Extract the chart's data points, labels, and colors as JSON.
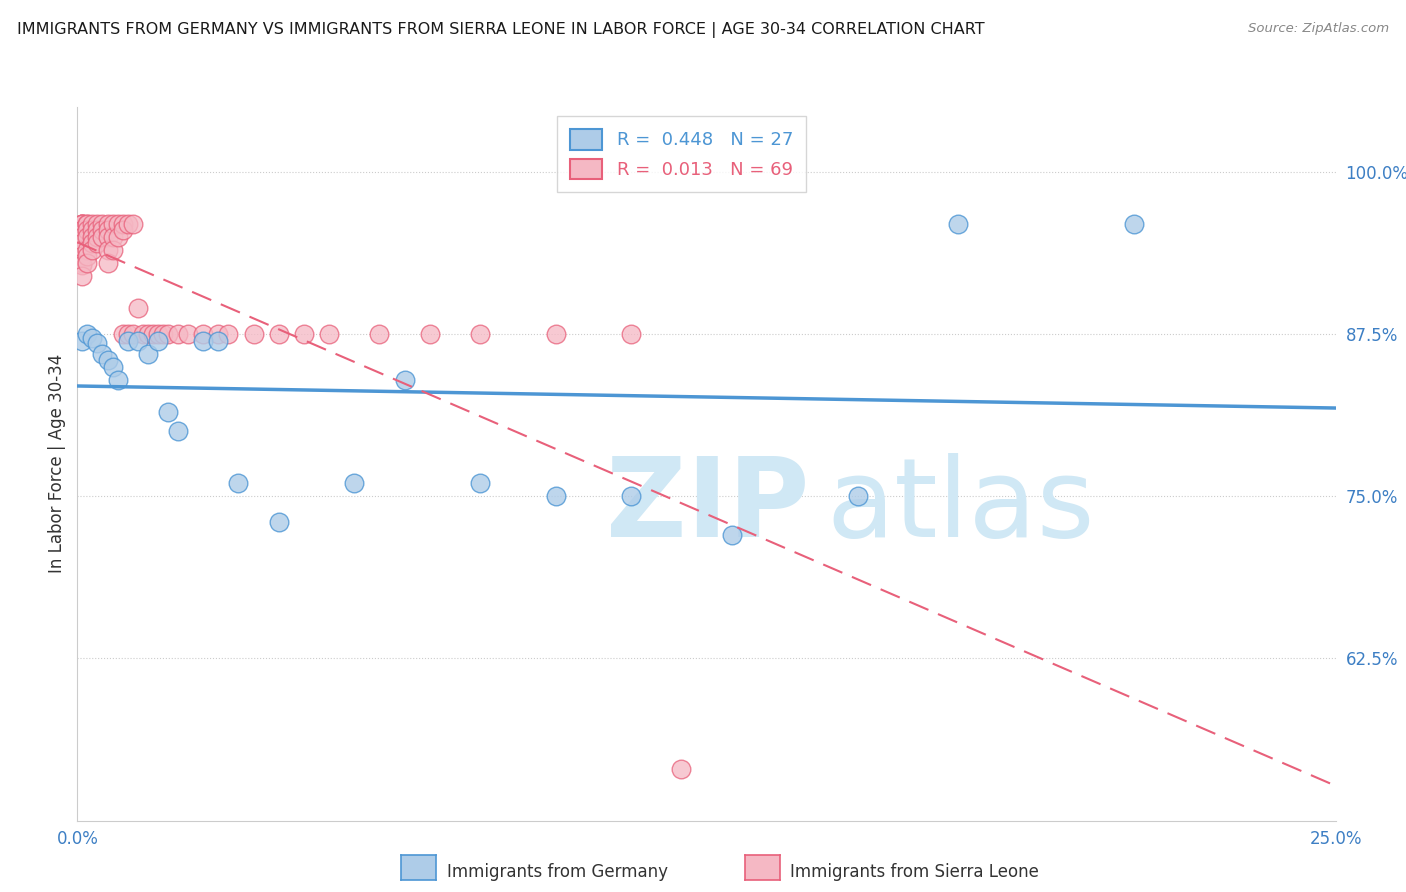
{
  "title": "IMMIGRANTS FROM GERMANY VS IMMIGRANTS FROM SIERRA LEONE IN LABOR FORCE | AGE 30-34 CORRELATION CHART",
  "source_text": "Source: ZipAtlas.com",
  "ylabel": "In Labor Force | Age 30-34",
  "xlim": [
    0.0,
    0.25
  ],
  "ylim": [
    0.5,
    1.05
  ],
  "yticks": [
    0.625,
    0.75,
    0.875,
    1.0
  ],
  "ytick_labels": [
    "62.5%",
    "75.0%",
    "87.5%",
    "100.0%"
  ],
  "xticks": [
    0.0,
    0.05,
    0.1,
    0.15,
    0.2,
    0.25
  ],
  "xtick_labels": [
    "0.0%",
    "",
    "",
    "",
    "",
    "25.0%"
  ],
  "germany_R": 0.448,
  "germany_N": 27,
  "sierraleone_R": 0.013,
  "sierraleone_N": 69,
  "germany_color": "#aecce8",
  "sierraleone_color": "#f5b8c4",
  "germany_line_color": "#4d96d4",
  "sierraleone_line_color": "#e8607a",
  "watermark_color": "#d0e8f5",
  "germany_scatter_x": [
    0.001,
    0.002,
    0.003,
    0.004,
    0.005,
    0.006,
    0.007,
    0.008,
    0.01,
    0.012,
    0.014,
    0.016,
    0.018,
    0.02,
    0.025,
    0.028,
    0.032,
    0.04,
    0.055,
    0.065,
    0.08,
    0.095,
    0.11,
    0.13,
    0.155,
    0.175,
    0.21
  ],
  "germany_scatter_y": [
    0.87,
    0.875,
    0.872,
    0.868,
    0.86,
    0.855,
    0.85,
    0.84,
    0.87,
    0.87,
    0.86,
    0.87,
    0.815,
    0.8,
    0.87,
    0.87,
    0.76,
    0.73,
    0.76,
    0.84,
    0.76,
    0.75,
    0.75,
    0.72,
    0.75,
    0.96,
    0.96
  ],
  "sierraleone_scatter_x": [
    0.001,
    0.001,
    0.001,
    0.001,
    0.001,
    0.001,
    0.001,
    0.001,
    0.001,
    0.001,
    0.001,
    0.001,
    0.002,
    0.002,
    0.002,
    0.002,
    0.002,
    0.002,
    0.002,
    0.003,
    0.003,
    0.003,
    0.003,
    0.003,
    0.004,
    0.004,
    0.004,
    0.004,
    0.005,
    0.005,
    0.005,
    0.006,
    0.006,
    0.006,
    0.006,
    0.006,
    0.007,
    0.007,
    0.007,
    0.008,
    0.008,
    0.009,
    0.009,
    0.009,
    0.01,
    0.01,
    0.011,
    0.011,
    0.012,
    0.013,
    0.014,
    0.015,
    0.016,
    0.017,
    0.018,
    0.02,
    0.022,
    0.025,
    0.028,
    0.03,
    0.035,
    0.04,
    0.045,
    0.05,
    0.06,
    0.07,
    0.08,
    0.095,
    0.11
  ],
  "sierraleone_scatter_y": [
    0.96,
    0.96,
    0.96,
    0.96,
    0.955,
    0.95,
    0.945,
    0.94,
    0.935,
    0.93,
    0.928,
    0.92,
    0.96,
    0.96,
    0.955,
    0.95,
    0.94,
    0.935,
    0.93,
    0.96,
    0.955,
    0.95,
    0.945,
    0.94,
    0.96,
    0.955,
    0.95,
    0.945,
    0.96,
    0.955,
    0.95,
    0.96,
    0.955,
    0.95,
    0.94,
    0.93,
    0.96,
    0.95,
    0.94,
    0.96,
    0.95,
    0.96,
    0.955,
    0.875,
    0.96,
    0.875,
    0.96,
    0.875,
    0.895,
    0.875,
    0.875,
    0.875,
    0.875,
    0.875,
    0.875,
    0.875,
    0.875,
    0.875,
    0.875,
    0.875,
    0.875,
    0.875,
    0.875,
    0.875,
    0.875,
    0.875,
    0.875,
    0.875,
    0.875
  ],
  "sierraleone_outlier_x": [
    0.12
  ],
  "sierraleone_outlier_y": [
    0.54
  ]
}
